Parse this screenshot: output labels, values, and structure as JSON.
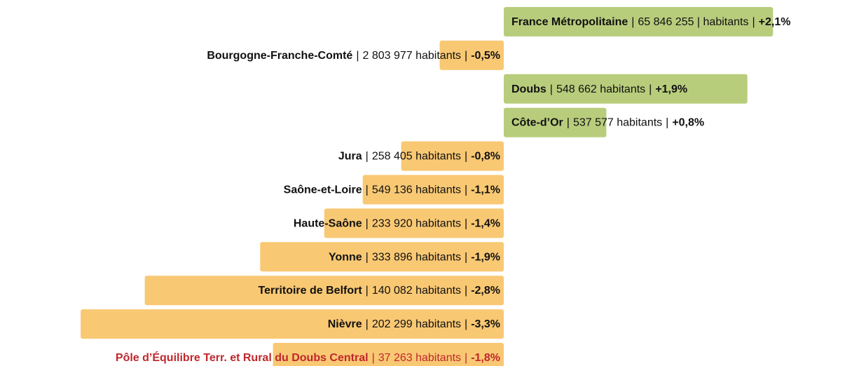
{
  "chart_data": {
    "type": "bar",
    "orientation": "horizontal",
    "categories": [
      "France Métropolitaine",
      "Bourgogne-Franche-Comté",
      "Doubs",
      "Côte-d’Or",
      "Jura",
      "Saône-et-Loire",
      "Haute-Saône",
      "Yonne",
      "Territoire de Belfort",
      "Nièvre",
      "Pôle d’Équilibre Terr. et Rural du Doubs Central"
    ],
    "details": [
      "65 846 255 | habitants",
      "2 803 977 habitants",
      "548 662 habitants",
      "537 577 habitants",
      "258 405 habitants",
      "549 136 habitants",
      "233 920 habitants",
      "333 896 habitants",
      "140 082 habitants",
      "202 299 habitants",
      "37 263 habitants"
    ],
    "separator": "|",
    "values": [
      2.1,
      -0.5,
      1.9,
      0.8,
      -0.8,
      -1.1,
      -1.4,
      -1.9,
      -2.8,
      -3.3,
      -1.8
    ],
    "value_labels": [
      "+2,1%",
      "-0,5%",
      "+1,9%",
      "+0,8%",
      "-0,8%",
      "-1,1%",
      "-1,4%",
      "-1,9%",
      "-2,8%",
      "-3,3%",
      "-1,8%"
    ],
    "positive_color": "#b8cd7c",
    "negative_color": "#f9c873",
    "highlight_color": "#c0272d",
    "highlight_index": 10
  }
}
